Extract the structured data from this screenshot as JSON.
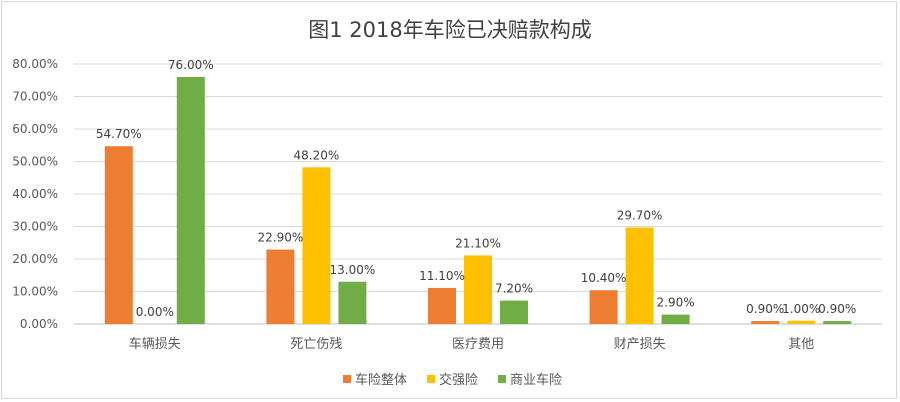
{
  "chart_data": {
    "type": "bar",
    "title": "图1  2018年车险已决赔款构成",
    "categories": [
      "车辆损失",
      "死亡伤残",
      "医疗费用",
      "财产损失",
      "其他"
    ],
    "series": [
      {
        "name": "车险整体",
        "color": "#ED7D31",
        "values": [
          54.7,
          22.9,
          11.1,
          10.4,
          0.9
        ],
        "labels": [
          "54.70%",
          "22.90%",
          "11.10%",
          "10.40%",
          "0.90%"
        ]
      },
      {
        "name": "交强险",
        "color": "#FFC000",
        "values": [
          0.0,
          48.2,
          21.1,
          29.7,
          1.0
        ],
        "labels": [
          "0.00%",
          "48.20%",
          "21.10%",
          "29.70%",
          "1.00%"
        ]
      },
      {
        "name": "商业车险",
        "color": "#70AD47",
        "values": [
          76.0,
          13.0,
          7.2,
          2.9,
          0.9
        ],
        "labels": [
          "76.00%",
          "13.00%",
          "7.20%",
          "2.90%",
          "0.90%"
        ]
      }
    ],
    "ylim": [
      0,
      80
    ],
    "yticks": [
      "0.00%",
      "10.00%",
      "20.00%",
      "30.00%",
      "40.00%",
      "50.00%",
      "60.00%",
      "70.00%",
      "80.00%"
    ],
    "grid": true,
    "legend_position": "bottom"
  }
}
